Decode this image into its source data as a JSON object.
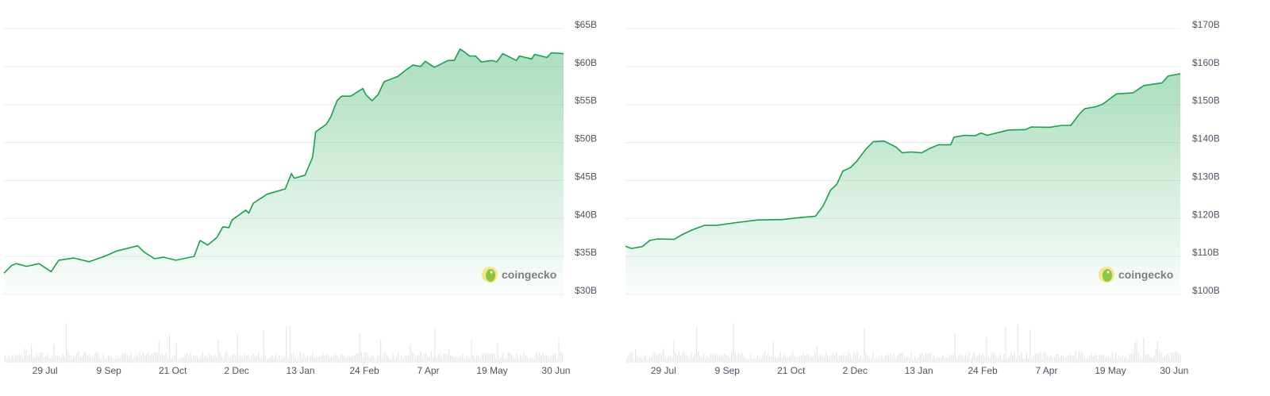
{
  "colors": {
    "line": "#16a34a",
    "fill": "#16a34a",
    "grid": "#e8ebef",
    "volume": "#e3e6ea"
  },
  "chart_data": [
    {
      "type": "area",
      "watermark": "coingecko",
      "ylim": [
        30,
        65
      ],
      "y_ticks": [
        "$30B",
        "$35B",
        "$40B",
        "$45B",
        "$50B",
        "$55B",
        "$60B",
        "$65B"
      ],
      "y_tick_values": [
        30,
        35,
        40,
        45,
        50,
        55,
        60,
        65
      ],
      "x_ticks": [
        "29 Jul",
        "9 Sep",
        "21 Oct",
        "2 Dec",
        "13 Jan",
        "24 Feb",
        "7 Apr",
        "19 May",
        "30 Jun"
      ],
      "grid": true,
      "volume_bars": true,
      "points": [
        [
          "2 Jul",
          32.8
        ],
        [
          "7 Jul",
          33.8
        ],
        [
          "10 Jul",
          34.05
        ],
        [
          "17 Jul",
          33.7
        ],
        [
          "25 Jul",
          34.05
        ],
        [
          "2 Aug",
          33.0
        ],
        [
          "7 Aug",
          34.5
        ],
        [
          "17 Aug",
          34.8
        ],
        [
          "27 Aug",
          34.3
        ],
        [
          "6 Sep",
          35.0
        ],
        [
          "14 Sep",
          35.7
        ],
        [
          "28 Sep",
          36.4
        ],
        [
          "2 Oct",
          35.6
        ],
        [
          "9 Oct",
          34.7
        ],
        [
          "15 Oct",
          34.9
        ],
        [
          "23 Oct",
          34.5
        ],
        [
          "4 Nov",
          35.0
        ],
        [
          "8 Nov",
          37.1
        ],
        [
          "13 Nov",
          36.5
        ],
        [
          "19 Nov",
          37.5
        ],
        [
          "23 Nov",
          38.9
        ],
        [
          "27 Nov",
          38.8
        ],
        [
          "29 Nov",
          39.8
        ],
        [
          "8 Dec",
          41.1
        ],
        [
          "10 Dec",
          40.7
        ],
        [
          "13 Dec",
          42.0
        ],
        [
          "22 Dec",
          43.2
        ],
        [
          "3 Jan",
          43.9
        ],
        [
          "7 Jan",
          45.9
        ],
        [
          "9 Jan",
          45.3
        ],
        [
          "16 Jan",
          45.7
        ],
        [
          "21 Jan",
          48.1
        ],
        [
          "23 Jan",
          51.4
        ],
        [
          "30 Jan",
          52.4
        ],
        [
          "2 Feb",
          53.4
        ],
        [
          "6 Feb",
          55.5
        ],
        [
          "9 Feb",
          56.1
        ],
        [
          "15 Feb",
          56.1
        ],
        [
          "23 Feb",
          57.1
        ],
        [
          "25 Feb",
          56.3
        ],
        [
          "1 Mar",
          55.5
        ],
        [
          "5 Mar",
          56.3
        ],
        [
          "9 Mar",
          58.0
        ],
        [
          "18 Mar",
          58.7
        ],
        [
          "23 Mar",
          59.5
        ],
        [
          "28 Mar",
          60.2
        ],
        [
          "2 Apr",
          60.0
        ],
        [
          "5 Apr",
          60.7
        ],
        [
          "11 Apr",
          59.9
        ],
        [
          "20 Apr",
          60.8
        ],
        [
          "24 Apr",
          60.8
        ],
        [
          "28 Apr",
          62.3
        ],
        [
          "1 May",
          61.9
        ],
        [
          "4 May",
          61.4
        ],
        [
          "8 May",
          61.4
        ],
        [
          "12 May",
          60.6
        ],
        [
          "19 May",
          60.8
        ],
        [
          "22 May",
          60.6
        ],
        [
          "26 May",
          61.7
        ],
        [
          "4 Jun",
          60.8
        ],
        [
          "6 Jun",
          61.4
        ],
        [
          "14 Jun",
          61.0
        ],
        [
          "16 Jun",
          61.6
        ],
        [
          "24 Jun",
          61.2
        ],
        [
          "27 Jun",
          61.8
        ],
        [
          "5 Jul",
          61.7
        ]
      ]
    },
    {
      "type": "area",
      "watermark": "coingecko",
      "ylim": [
        100,
        170
      ],
      "y_ticks": [
        "$100B",
        "$110B",
        "$120B",
        "$130B",
        "$140B",
        "$150B",
        "$160B",
        "$170B"
      ],
      "y_tick_values": [
        100,
        110,
        120,
        130,
        140,
        150,
        160,
        170
      ],
      "x_ticks": [
        "29 Jul",
        "9 Sep",
        "21 Oct",
        "2 Dec",
        "13 Jan",
        "24 Feb",
        "7 Apr",
        "19 May",
        "30 Jun"
      ],
      "grid": true,
      "volume_bars": true,
      "points": [
        [
          "4 Jul",
          112.7
        ],
        [
          "8 Jul",
          112.1
        ],
        [
          "15 Jul",
          112.6
        ],
        [
          "20 Jul",
          114.2
        ],
        [
          "25 Jul",
          114.6
        ],
        [
          "5 Aug",
          114.5
        ],
        [
          "10 Aug",
          115.7
        ],
        [
          "17 Aug",
          117.0
        ],
        [
          "25 Aug",
          118.2
        ],
        [
          "2 Sep",
          118.2
        ],
        [
          "15 Sep",
          118.9
        ],
        [
          "29 Sep",
          119.6
        ],
        [
          "15 Oct",
          119.7
        ],
        [
          "26 Oct",
          120.2
        ],
        [
          "6 Nov",
          120.6
        ],
        [
          "11 Nov",
          123.3
        ],
        [
          "16 Nov",
          127.5
        ],
        [
          "20 Nov",
          129.0
        ],
        [
          "24 Nov",
          132.5
        ],
        [
          "29 Nov",
          133.4
        ],
        [
          "3 Dec",
          135.0
        ],
        [
          "9 Dec",
          138.2
        ],
        [
          "14 Dec",
          140.2
        ],
        [
          "21 Dec",
          140.4
        ],
        [
          "29 Dec",
          138.8
        ],
        [
          "2 Jan",
          137.3
        ],
        [
          "8 Jan",
          137.5
        ],
        [
          "15 Jan",
          137.3
        ],
        [
          "20 Jan",
          138.4
        ],
        [
          "26 Jan",
          139.4
        ],
        [
          "3 Feb",
          139.4
        ],
        [
          "5 Feb",
          141.4
        ],
        [
          "12 Feb",
          141.9
        ],
        [
          "19 Feb",
          141.8
        ],
        [
          "23 Feb",
          142.5
        ],
        [
          "27 Feb",
          141.9
        ],
        [
          "13 Mar",
          143.3
        ],
        [
          "24 Mar",
          143.4
        ],
        [
          "28 Mar",
          144.1
        ],
        [
          "9 Apr",
          144.0
        ],
        [
          "17 Apr",
          144.5
        ],
        [
          "23 Apr",
          144.5
        ],
        [
          "28 Apr",
          147.2
        ],
        [
          "2 May",
          148.9
        ],
        [
          "9 May",
          149.4
        ],
        [
          "14 May",
          150.1
        ],
        [
          "18 May",
          151.3
        ],
        [
          "23 May",
          152.8
        ],
        [
          "3 Jun",
          153.1
        ],
        [
          "10 Jun",
          155.0
        ],
        [
          "22 Jun",
          155.7
        ],
        [
          "26 Jun",
          157.5
        ],
        [
          "4 Jul",
          158.1
        ]
      ]
    }
  ]
}
